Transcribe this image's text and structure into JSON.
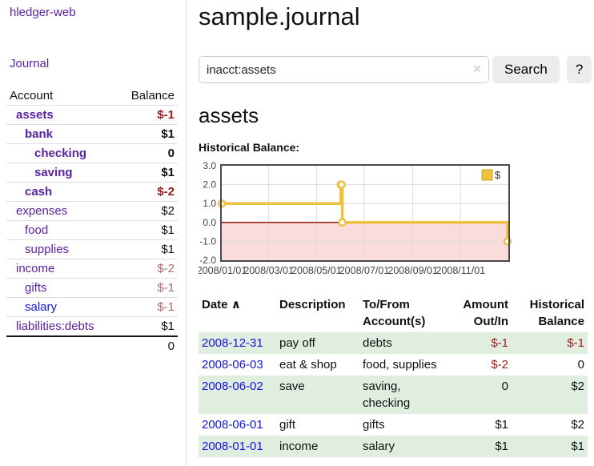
{
  "colors": {
    "link-purple": "#5c22a0",
    "link-blue": "#1414dd",
    "neg-strong": "#9c1a1a",
    "neg-muted": "#b36a6a",
    "row-shade": "#dfeedf",
    "button-bg": "#ececec",
    "border-light": "#dddddd",
    "chart-grid": "#dcdcdc",
    "chart-border": "#4a4a4a",
    "chart-label": "#444444",
    "clear-icon": "#c9c2dc",
    "text": "#111111"
  },
  "sidebar": {
    "brand": "hledger-web",
    "journal_link": "Journal",
    "accounts": {
      "header_account": "Account",
      "header_balance": "Balance",
      "rows": [
        {
          "name": "assets",
          "balance": "$-1",
          "depth": 1,
          "bold": true,
          "tone": "neg",
          "blue": false
        },
        {
          "name": "bank",
          "balance": "$1",
          "depth": 2,
          "bold": true,
          "tone": "",
          "blue": false
        },
        {
          "name": "checking",
          "balance": "0",
          "depth": 3,
          "bold": true,
          "tone": "",
          "blue": false
        },
        {
          "name": "saving",
          "balance": "$1",
          "depth": 3,
          "bold": true,
          "tone": "",
          "blue": false
        },
        {
          "name": "cash",
          "balance": "$-2",
          "depth": 2,
          "bold": true,
          "tone": "neg",
          "blue": false
        },
        {
          "name": "expenses",
          "balance": "$2",
          "depth": 1,
          "bold": false,
          "tone": "",
          "blue": false
        },
        {
          "name": "food",
          "balance": "$1",
          "depth": 2,
          "bold": false,
          "tone": "",
          "blue": false
        },
        {
          "name": "supplies",
          "balance": "$1",
          "depth": 2,
          "bold": false,
          "tone": "",
          "blue": false
        },
        {
          "name": "income",
          "balance": "$-2",
          "depth": 1,
          "bold": false,
          "tone": "negm",
          "blue": false
        },
        {
          "name": "gifts",
          "balance": "$-1",
          "depth": 2,
          "bold": false,
          "tone": "negm",
          "blue": false
        },
        {
          "name": "salary",
          "balance": "$-1",
          "depth": 2,
          "bold": false,
          "tone": "negm",
          "blue": true
        },
        {
          "name": "liabilities:debts",
          "balance": "$1",
          "depth": 1,
          "bold": false,
          "tone": "",
          "blue": false
        }
      ],
      "total": "0"
    }
  },
  "main": {
    "title": "sample.journal",
    "search": {
      "value": "inacct:assets",
      "clear_icon": "✕",
      "button_label": "Search",
      "help_label": "?"
    },
    "account_heading": "assets",
    "register": {
      "headers": [
        "Date",
        "Description",
        "To/From Account(s)",
        "Amount Out/In",
        "Historical Balance"
      ],
      "sort_icon": "∧",
      "rows": [
        {
          "date": "2008-12-31",
          "description": "pay off",
          "accounts": "debts",
          "amount": "$-1",
          "amount_negative": true,
          "balance": "$-1",
          "balance_negative": true
        },
        {
          "date": "2008-06-03",
          "description": "eat & shop",
          "accounts": "food, supplies",
          "amount": "$-2",
          "amount_negative": true,
          "balance": "0",
          "balance_negative": false
        },
        {
          "date": "2008-06-02",
          "description": "save",
          "accounts": "saving, checking",
          "amount": "0",
          "amount_negative": false,
          "balance": "$2",
          "balance_negative": false
        },
        {
          "date": "2008-06-01",
          "description": "gift",
          "accounts": "gifts",
          "amount": "$1",
          "amount_negative": false,
          "balance": "$2",
          "balance_negative": false
        },
        {
          "date": "2008-01-01",
          "description": "income",
          "accounts": "salary",
          "amount": "$1",
          "amount_negative": false,
          "balance": "$1",
          "balance_negative": false
        }
      ]
    }
  },
  "chart_data": {
    "type": "line",
    "title": "Historical Balance:",
    "step": true,
    "series": [
      {
        "name": "$",
        "color": "#edc240",
        "points": [
          [
            "2008-01-01",
            1
          ],
          [
            "2008-06-01",
            2
          ],
          [
            "2008-06-02",
            2
          ],
          [
            "2008-06-03",
            0
          ],
          [
            "2008-12-31",
            -1
          ]
        ]
      }
    ],
    "x_range": [
      "2008-01-01",
      "2009-01-01"
    ],
    "x_ticks": [
      "2008/01/01",
      "2008/03/01",
      "2008/05/01",
      "2008/07/01",
      "2008/09/01",
      "2008/11/01"
    ],
    "y_ticks": [
      3.0,
      2.0,
      1.0,
      0.0,
      -1.0,
      -2.0
    ],
    "ylim": [
      -2,
      3
    ],
    "grid": true,
    "negative_region_color": "#fbdcdc",
    "zero_line_color": "#8b0000",
    "legend": {
      "label": "$",
      "position": "top-right"
    }
  }
}
